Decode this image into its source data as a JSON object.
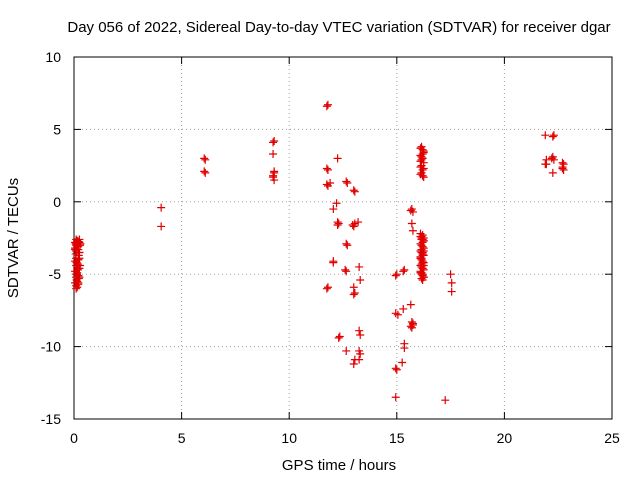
{
  "chart_data": {
    "type": "scatter",
    "title": "Day 056 of 2022, Sidereal Day-to-day VTEC variation (SDTVAR) for receiver dgar",
    "xlabel": "GPS time / hours",
    "ylabel": "SDTVAR / TECUs",
    "xlim": [
      0,
      25
    ],
    "ylim": [
      -15,
      10
    ],
    "xticks": [
      0,
      5,
      10,
      15,
      20,
      25
    ],
    "yticks": [
      -15,
      -10,
      -5,
      0,
      5,
      10
    ],
    "xtick_labels": [
      "0",
      "5",
      "10",
      "15",
      "20",
      "25"
    ],
    "ytick_labels": [
      "-15",
      "-10",
      "-5",
      "0",
      "5",
      "10"
    ],
    "grid": true,
    "marker": "+",
    "color": "#e00000",
    "series": [
      {
        "name": "dgar",
        "x": [
          0.05,
          0.08,
          0.1,
          0.12,
          0.15,
          0.18,
          0.2,
          0.22,
          0.25,
          0.28,
          0.3,
          0.05,
          0.08,
          0.1,
          0.12,
          0.15,
          0.18,
          0.2,
          0.22,
          0.25,
          0.05,
          0.08,
          0.1,
          0.12,
          0.15,
          0.18,
          0.2,
          0.22,
          0.25,
          0.28,
          0.05,
          0.1,
          0.15,
          0.2,
          0.25,
          0.05,
          0.1,
          0.15,
          0.2,
          0.25,
          0.05,
          0.1,
          0.15,
          0.2,
          0.25,
          0.1,
          0.15,
          0.2,
          0.1,
          0.15,
          0.2,
          0.25,
          4.05,
          4.05,
          6.05,
          6.1,
          6.05,
          6.1,
          9.25,
          9.3,
          9.25,
          9.3,
          9.25,
          9.3,
          9.25,
          9.3,
          11.75,
          11.8,
          11.75,
          11.8,
          11.75,
          11.8,
          11.9,
          12.05,
          12.2,
          12.25,
          12.25,
          12.3,
          12.25,
          12.05,
          12.05,
          11.8,
          11.75,
          12.35,
          12.3,
          12.65,
          12.7,
          12.65,
          12.7,
          12.65,
          12.6,
          12.65,
          13.0,
          13.05,
          12.95,
          13.0,
          13.05,
          13.2,
          13.25,
          13.0,
          13.0,
          13.05,
          13.3,
          13.25,
          13.3,
          13.25,
          13.3,
          13.25,
          13.0,
          13.05,
          14.95,
          15.0,
          15.3,
          15.35,
          14.95,
          15.05,
          15.3,
          15.35,
          15.35,
          14.95,
          15.0,
          15.25,
          14.95,
          15.65,
          15.7,
          15.75,
          15.7,
          15.75,
          15.65,
          15.7,
          15.75,
          15.65,
          15.75,
          15.7,
          16.1,
          16.15,
          16.2,
          16.25,
          16.1,
          16.15,
          16.2,
          16.25,
          16.1,
          16.15,
          16.2,
          16.25,
          16.1,
          16.15,
          16.2,
          16.25,
          16.1,
          16.15,
          16.2,
          16.25,
          16.1,
          16.15,
          16.2,
          16.25,
          16.1,
          16.15,
          16.2,
          16.25,
          16.1,
          16.15,
          16.2,
          16.25,
          16.1,
          16.15,
          16.2,
          16.25,
          16.1,
          16.15,
          16.2,
          16.25,
          16.1,
          16.15,
          16.2,
          16.25,
          16.15,
          16.2,
          16.25,
          16.15,
          16.2,
          16.25,
          16.1,
          16.15,
          16.2,
          16.25,
          16.15,
          16.2,
          16.25,
          16.15,
          16.2,
          16.25,
          16.1,
          16.15,
          16.2,
          16.1,
          16.15,
          16.2,
          17.25,
          17.5,
          17.55,
          17.55,
          21.9,
          21.95,
          22.25,
          22.3,
          22.2,
          22.25,
          22.3,
          21.95,
          21.9,
          22.25,
          22.7,
          22.75,
          22.7,
          22.75,
          22.7
        ],
        "y": [
          -2.8,
          -2.9,
          -3.0,
          -2.85,
          -2.7,
          -2.9,
          -3.1,
          -2.75,
          -2.8,
          -3.0,
          -2.9,
          -3.3,
          -3.6,
          -3.9,
          -4.2,
          -4.5,
          -4.3,
          -4.0,
          -3.7,
          -3.5,
          -4.8,
          -5.0,
          -5.2,
          -5.4,
          -4.9,
          -4.7,
          -5.1,
          -5.3,
          -4.6,
          -4.4,
          -5.6,
          -5.8,
          -5.5,
          -5.7,
          -5.2,
          -4.1,
          -4.4,
          -4.7,
          -4.0,
          -3.9,
          -3.2,
          -3.4,
          -3.1,
          -3.3,
          -3.5,
          -6.0,
          -5.9,
          -5.6,
          -2.6,
          -2.7,
          -2.8,
          -2.6,
          -0.4,
          -1.7,
          3.0,
          2.9,
          2.1,
          2.0,
          4.1,
          4.2,
          3.3,
          2.1,
          1.7,
          1.5,
          1.8,
          2.0,
          6.6,
          6.7,
          2.3,
          2.2,
          1.2,
          1.1,
          1.3,
          -0.5,
          -0.1,
          -1.4,
          -1.6,
          -1.5,
          3.0,
          -4.1,
          -4.2,
          -5.9,
          -6.0,
          -9.3,
          -9.4,
          1.4,
          1.3,
          -2.9,
          -3.0,
          -4.8,
          -4.7,
          -10.3,
          0.8,
          0.7,
          -1.6,
          -1.7,
          -1.5,
          -1.4,
          -4.5,
          -5.9,
          -6.4,
          -6.3,
          -5.4,
          -8.9,
          -9.2,
          -10.3,
          -10.5,
          -10.9,
          -11.2,
          -10.9,
          -5.1,
          -5.0,
          -4.8,
          -4.7,
          -7.7,
          -7.8,
          -7.4,
          -9.8,
          -10.1,
          -11.5,
          -11.6,
          -11.1,
          -13.5,
          -0.6,
          -0.5,
          -0.7,
          -1.5,
          -2.0,
          -7.1,
          -8.3,
          -8.4,
          -8.6,
          -8.5,
          -8.7,
          3.7,
          3.8,
          3.6,
          3.5,
          3.2,
          3.1,
          3.3,
          3.4,
          2.8,
          2.9,
          3.0,
          2.7,
          2.4,
          2.5,
          2.2,
          2.3,
          1.9,
          2.0,
          1.8,
          1.7,
          -2.4,
          -2.5,
          -2.6,
          -2.7,
          -2.9,
          -3.0,
          -3.1,
          -3.2,
          -3.4,
          -3.5,
          -3.6,
          -3.7,
          -3.9,
          -4.0,
          -4.1,
          -4.2,
          -4.4,
          -4.5,
          -4.6,
          -4.7,
          -4.9,
          -5.0,
          -5.1,
          -5.2,
          -5.3,
          -5.4,
          -5.2,
          -2.6,
          -2.8,
          -2.7,
          -2.2,
          -2.4,
          -2.3,
          -2.5,
          -3.3,
          -3.5,
          -3.4,
          -4.3,
          -4.2,
          -4.4,
          -3.8,
          -3.9,
          -3.7,
          -4.8,
          -4.9,
          -5.0,
          -13.7,
          -5.0,
          -5.6,
          -6.2,
          4.6,
          2.6,
          4.5,
          4.6,
          3.0,
          3.1,
          2.9,
          2.9,
          2.6,
          2.0,
          2.7,
          2.6,
          2.4,
          2.2,
          2.3
        ]
      }
    ]
  }
}
